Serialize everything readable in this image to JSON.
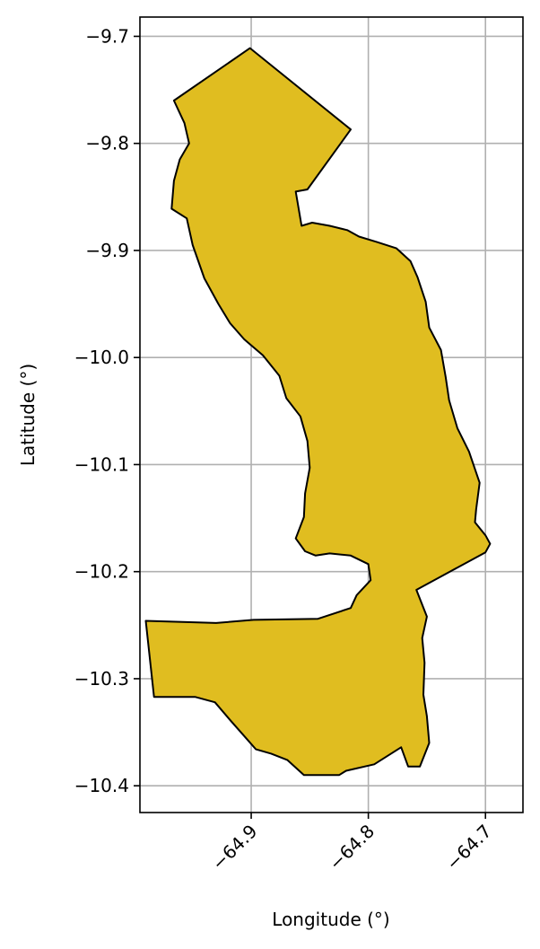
{
  "chart_data": {
    "type": "map",
    "xlabel": "Longitude (°)",
    "ylabel": "Latitude (°)",
    "xlim": [
      -64.995,
      -64.668
    ],
    "ylim": [
      -10.425,
      -9.682
    ],
    "xticks": [
      -64.9,
      -64.8,
      -64.7
    ],
    "xtick_labels": [
      "−64.9",
      "−64.8",
      "−64.7"
    ],
    "yticks": [
      -9.7,
      -9.8,
      -9.9,
      -10.0,
      -10.1,
      -10.2,
      -10.3,
      -10.4
    ],
    "ytick_labels": [
      "−9.7",
      "−9.8",
      "−9.9",
      "−10.0",
      "−10.1",
      "−10.2",
      "−10.3",
      "−10.4"
    ],
    "grid": true,
    "region_fill": "#e0bd20",
    "region_edge": "#000000",
    "polygon": [
      [
        -64.901,
        -9.711
      ],
      [
        -64.815,
        -9.787
      ],
      [
        -64.852,
        -9.843
      ],
      [
        -64.862,
        -9.845
      ],
      [
        -64.857,
        -9.877
      ],
      [
        -64.848,
        -9.874
      ],
      [
        -64.833,
        -9.877
      ],
      [
        -64.818,
        -9.881
      ],
      [
        -64.808,
        -9.887
      ],
      [
        -64.793,
        -9.892
      ],
      [
        -64.776,
        -9.898
      ],
      [
        -64.764,
        -9.91
      ],
      [
        -64.758,
        -9.925
      ],
      [
        -64.751,
        -9.948
      ],
      [
        -64.748,
        -9.972
      ],
      [
        -64.738,
        -9.993
      ],
      [
        -64.734,
        -10.018
      ],
      [
        -64.731,
        -10.04
      ],
      [
        -64.724,
        -10.066
      ],
      [
        -64.714,
        -10.088
      ],
      [
        -64.705,
        -10.117
      ],
      [
        -64.708,
        -10.142
      ],
      [
        -64.709,
        -10.154
      ],
      [
        -64.7,
        -10.166
      ],
      [
        -64.696,
        -10.174
      ],
      [
        -64.7,
        -10.182
      ],
      [
        -64.759,
        -10.217
      ],
      [
        -64.75,
        -10.242
      ],
      [
        -64.754,
        -10.262
      ],
      [
        -64.752,
        -10.285
      ],
      [
        -64.753,
        -10.315
      ],
      [
        -64.75,
        -10.335
      ],
      [
        -64.748,
        -10.36
      ],
      [
        -64.756,
        -10.382
      ],
      [
        -64.766,
        -10.382
      ],
      [
        -64.772,
        -10.364
      ],
      [
        -64.795,
        -10.38
      ],
      [
        -64.819,
        -10.386
      ],
      [
        -64.825,
        -10.39
      ],
      [
        -64.843,
        -10.39
      ],
      [
        -64.855,
        -10.39
      ],
      [
        -64.869,
        -10.376
      ],
      [
        -64.883,
        -10.37
      ],
      [
        -64.896,
        -10.366
      ],
      [
        -64.904,
        -10.356
      ],
      [
        -64.917,
        -10.34
      ],
      [
        -64.931,
        -10.322
      ],
      [
        -64.948,
        -10.317
      ],
      [
        -64.983,
        -10.317
      ],
      [
        -64.99,
        -10.246
      ],
      [
        -64.93,
        -10.248
      ],
      [
        -64.898,
        -10.245
      ],
      [
        -64.843,
        -10.244
      ],
      [
        -64.815,
        -10.234
      ],
      [
        -64.81,
        -10.222
      ],
      [
        -64.798,
        -10.208
      ],
      [
        -64.8,
        -10.193
      ],
      [
        -64.815,
        -10.185
      ],
      [
        -64.833,
        -10.183
      ],
      [
        -64.845,
        -10.185
      ],
      [
        -64.854,
        -10.181
      ],
      [
        -64.862,
        -10.169
      ],
      [
        -64.855,
        -10.149
      ],
      [
        -64.854,
        -10.127
      ],
      [
        -64.85,
        -10.103
      ],
      [
        -64.852,
        -10.078
      ],
      [
        -64.858,
        -10.055
      ],
      [
        -64.87,
        -10.038
      ],
      [
        -64.876,
        -10.017
      ],
      [
        -64.89,
        -9.998
      ],
      [
        -64.906,
        -9.983
      ],
      [
        -64.918,
        -9.968
      ],
      [
        -64.928,
        -9.95
      ],
      [
        -64.94,
        -9.926
      ],
      [
        -64.95,
        -9.895
      ],
      [
        -64.955,
        -9.87
      ],
      [
        -64.968,
        -9.861
      ],
      [
        -64.966,
        -9.835
      ],
      [
        -64.961,
        -9.815
      ],
      [
        -64.953,
        -9.8
      ],
      [
        -64.957,
        -9.781
      ],
      [
        -64.966,
        -9.76
      ]
    ]
  }
}
